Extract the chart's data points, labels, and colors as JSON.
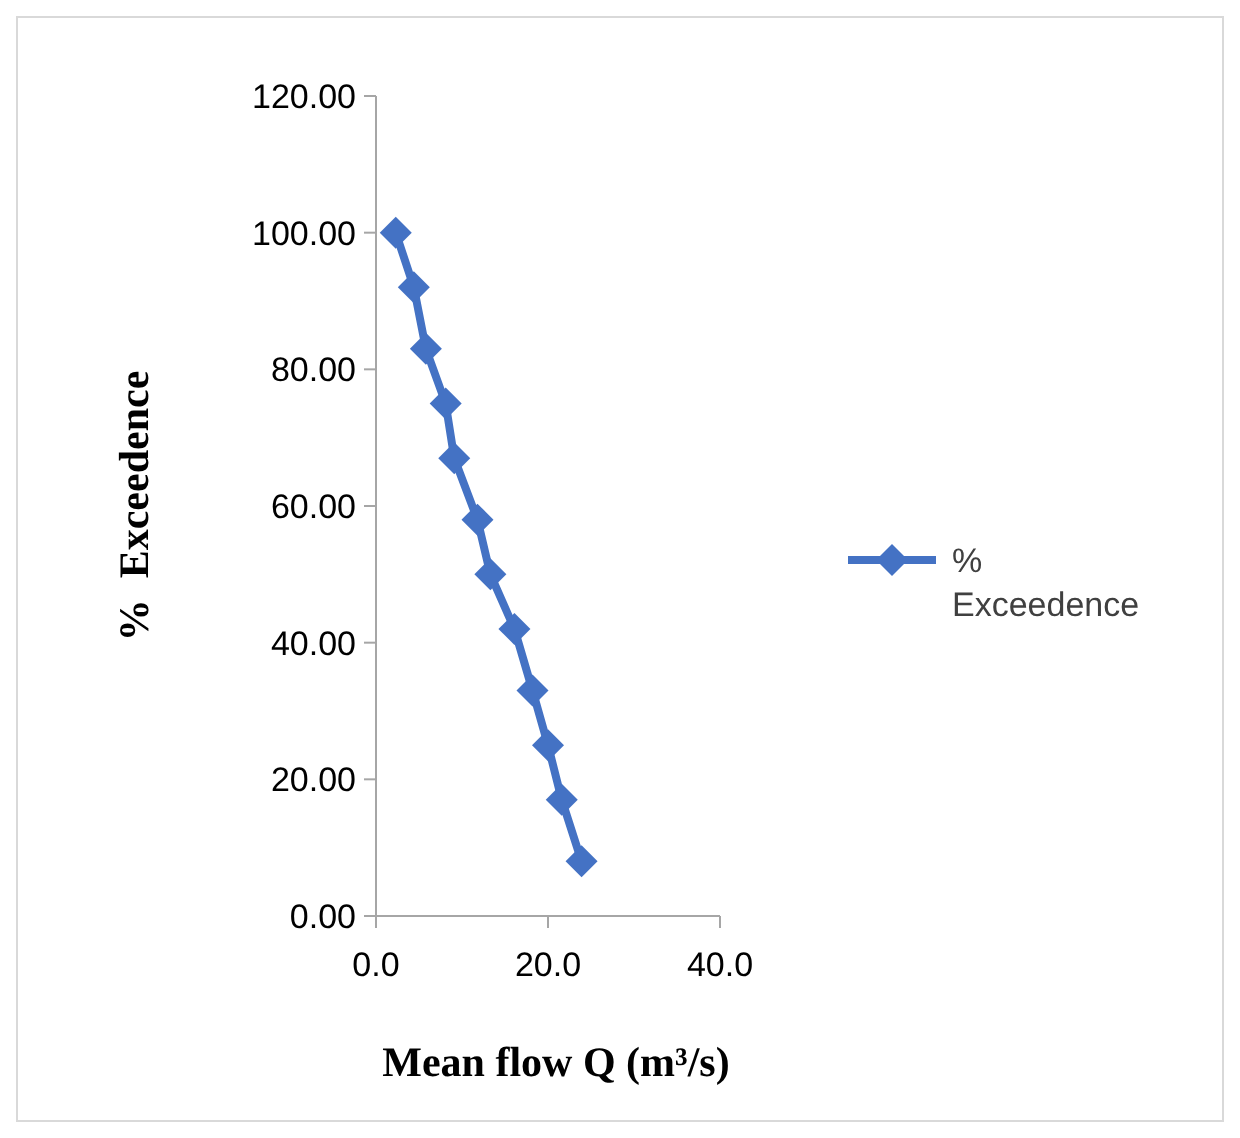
{
  "chart_data": {
    "type": "line",
    "xlabel": "Mean flow Q (m³/s)",
    "ylabel": "%  Exceedence",
    "x": [
      2.3,
      4.4,
      5.8,
      8.1,
      9.1,
      11.8,
      13.3,
      16.1,
      18.2,
      20.0,
      21.6,
      23.9
    ],
    "series": [
      {
        "name": "% Exceedence",
        "color": "#4472c4",
        "values": [
          100,
          92,
          83,
          75,
          67,
          58,
          50,
          42,
          33,
          25,
          17,
          8
        ]
      }
    ],
    "xlim": [
      0,
      40
    ],
    "xticks": [
      {
        "value": 0,
        "label": "0.0"
      },
      {
        "value": 20,
        "label": "20.0"
      },
      {
        "value": 40,
        "label": "40.0"
      }
    ],
    "ylim": [
      0,
      120
    ],
    "yticks": [
      {
        "value": 0,
        "label": "0.00"
      },
      {
        "value": 20,
        "label": "20.00"
      },
      {
        "value": 40,
        "label": "40.00"
      },
      {
        "value": 60,
        "label": "60.00"
      },
      {
        "value": 80,
        "label": "80.00"
      },
      {
        "value": 100,
        "label": "100.00"
      },
      {
        "value": 120,
        "label": "120.00"
      }
    ],
    "marker": "diamond",
    "legend": "right",
    "grid": false
  }
}
